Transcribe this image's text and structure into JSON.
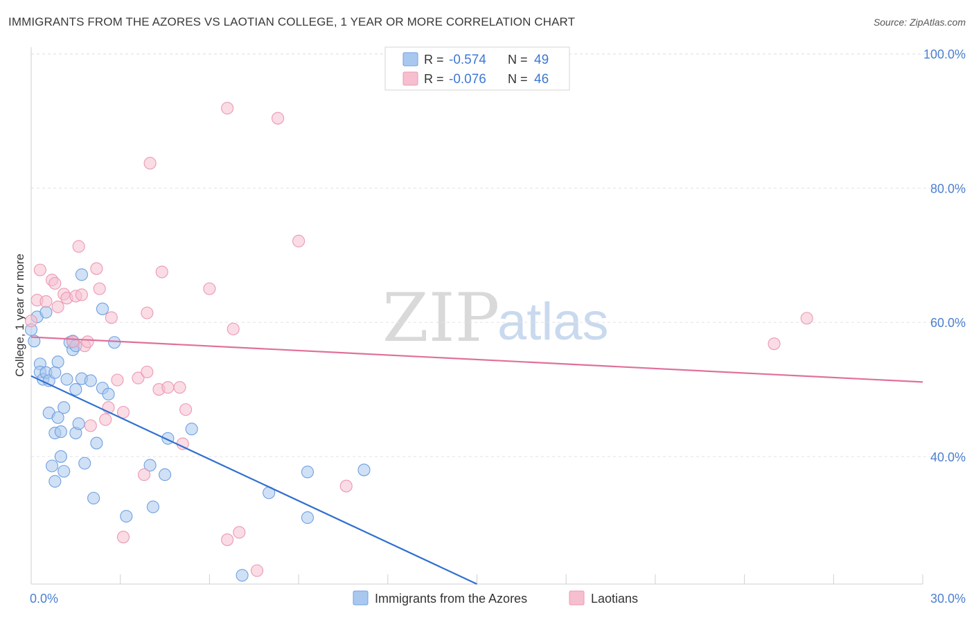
{
  "title": "IMMIGRANTS FROM THE AZORES VS LAOTIAN COLLEGE, 1 YEAR OR MORE CORRELATION CHART",
  "source": "Source: ZipAtlas.com",
  "watermark": {
    "zip": "ZIP",
    "atlas": "atlas"
  },
  "colors": {
    "blue_fill": "#a9c8ef",
    "blue_stroke": "#6f9fe0",
    "blue_line": "#2f6fd0",
    "pink_fill": "#f6bfd0",
    "pink_stroke": "#ec98b2",
    "pink_line": "#e0709a",
    "grid": "#e3e3e3",
    "tick_text": "#4a7fd0"
  },
  "chart_data": {
    "type": "scatter",
    "title": "IMMIGRANTS FROM THE AZORES VS LAOTIAN COLLEGE, 1 YEAR OR MORE CORRELATION CHART",
    "xlabel": "",
    "ylabel": "College, 1 year or more",
    "xlim": [
      0,
      30
    ],
    "ylim": [
      21,
      101
    ],
    "x_tick_labels": [
      "0.0%",
      "30.0%"
    ],
    "y_ticks": [
      40,
      60,
      80,
      100
    ],
    "y_tick_labels": [
      "40.0%",
      "60.0%",
      "80.0%",
      "100.0%"
    ],
    "grid": true,
    "legend_stats": [
      {
        "r_label": "R =",
        "r_value": "-0.574",
        "n_label": "N =",
        "n_value": "49"
      },
      {
        "r_label": "R =",
        "r_value": "-0.076",
        "n_label": "N =",
        "n_value": "46"
      }
    ],
    "series": [
      {
        "name": "Immigrants from the Azores",
        "color": "#a9c8ef",
        "trend": {
          "x": [
            0.0,
            15.0
          ],
          "y": [
            52.0,
            21.0
          ]
        },
        "points": [
          [
            0.0,
            58.9
          ],
          [
            0.1,
            57.2
          ],
          [
            0.2,
            60.8
          ],
          [
            0.3,
            53.8
          ],
          [
            0.3,
            52.6
          ],
          [
            0.4,
            51.5
          ],
          [
            0.5,
            52.5
          ],
          [
            0.5,
            61.5
          ],
          [
            0.6,
            46.5
          ],
          [
            0.6,
            51.3
          ],
          [
            0.7,
            38.6
          ],
          [
            0.8,
            43.5
          ],
          [
            0.8,
            36.3
          ],
          [
            0.8,
            52.5
          ],
          [
            0.9,
            45.8
          ],
          [
            0.9,
            54.1
          ],
          [
            1.0,
            43.7
          ],
          [
            1.0,
            40.0
          ],
          [
            1.1,
            47.3
          ],
          [
            1.1,
            37.8
          ],
          [
            1.2,
            51.5
          ],
          [
            1.3,
            57.0
          ],
          [
            1.4,
            55.9
          ],
          [
            1.4,
            57.2
          ],
          [
            1.5,
            43.5
          ],
          [
            1.5,
            50.0
          ],
          [
            1.5,
            56.5
          ],
          [
            1.6,
            44.9
          ],
          [
            1.7,
            67.1
          ],
          [
            1.7,
            51.6
          ],
          [
            1.8,
            39.0
          ],
          [
            2.0,
            51.3
          ],
          [
            2.1,
            33.8
          ],
          [
            2.2,
            42.0
          ],
          [
            2.4,
            62.0
          ],
          [
            2.4,
            50.2
          ],
          [
            2.6,
            49.3
          ],
          [
            2.8,
            57.0
          ],
          [
            3.2,
            31.1
          ],
          [
            4.0,
            38.7
          ],
          [
            4.1,
            32.5
          ],
          [
            4.5,
            37.3
          ],
          [
            4.6,
            42.7
          ],
          [
            5.4,
            44.1
          ],
          [
            8.0,
            34.6
          ],
          [
            9.3,
            30.9
          ],
          [
            9.3,
            37.7
          ],
          [
            11.2,
            38.0
          ],
          [
            7.1,
            22.3
          ]
        ]
      },
      {
        "name": "Laotians",
        "color": "#f6bfd0",
        "trend": {
          "x": [
            0.0,
            30.0
          ],
          "y": [
            57.8,
            51.1
          ]
        },
        "points": [
          [
            0.0,
            60.2
          ],
          [
            0.2,
            63.3
          ],
          [
            0.3,
            67.8
          ],
          [
            0.5,
            63.1
          ],
          [
            0.7,
            66.3
          ],
          [
            0.8,
            65.8
          ],
          [
            0.9,
            62.3
          ],
          [
            1.1,
            64.2
          ],
          [
            1.2,
            63.6
          ],
          [
            1.4,
            57.1
          ],
          [
            1.5,
            63.9
          ],
          [
            1.6,
            71.3
          ],
          [
            1.7,
            64.1
          ],
          [
            1.8,
            56.5
          ],
          [
            1.9,
            57.1
          ],
          [
            2.0,
            44.6
          ],
          [
            2.2,
            68.0
          ],
          [
            2.3,
            65.0
          ],
          [
            2.5,
            45.5
          ],
          [
            2.6,
            47.3
          ],
          [
            2.7,
            60.7
          ],
          [
            2.9,
            51.4
          ],
          [
            3.1,
            46.6
          ],
          [
            3.1,
            28.0
          ],
          [
            3.6,
            51.7
          ],
          [
            3.8,
            37.3
          ],
          [
            3.9,
            52.6
          ],
          [
            3.9,
            61.4
          ],
          [
            4.0,
            83.7
          ],
          [
            4.3,
            50.0
          ],
          [
            4.4,
            67.5
          ],
          [
            4.6,
            50.3
          ],
          [
            5.0,
            50.3
          ],
          [
            5.1,
            41.9
          ],
          [
            5.2,
            47.0
          ],
          [
            6.0,
            65.0
          ],
          [
            6.6,
            27.6
          ],
          [
            6.6,
            91.9
          ],
          [
            6.8,
            59.0
          ],
          [
            7.0,
            28.7
          ],
          [
            7.6,
            23.0
          ],
          [
            8.3,
            90.4
          ],
          [
            9.0,
            72.1
          ],
          [
            10.6,
            35.6
          ],
          [
            25.0,
            56.8
          ],
          [
            26.1,
            60.6
          ]
        ]
      }
    ]
  },
  "bottom_legend": [
    {
      "label": "Immigrants from the Azores"
    },
    {
      "label": "Laotians"
    }
  ]
}
